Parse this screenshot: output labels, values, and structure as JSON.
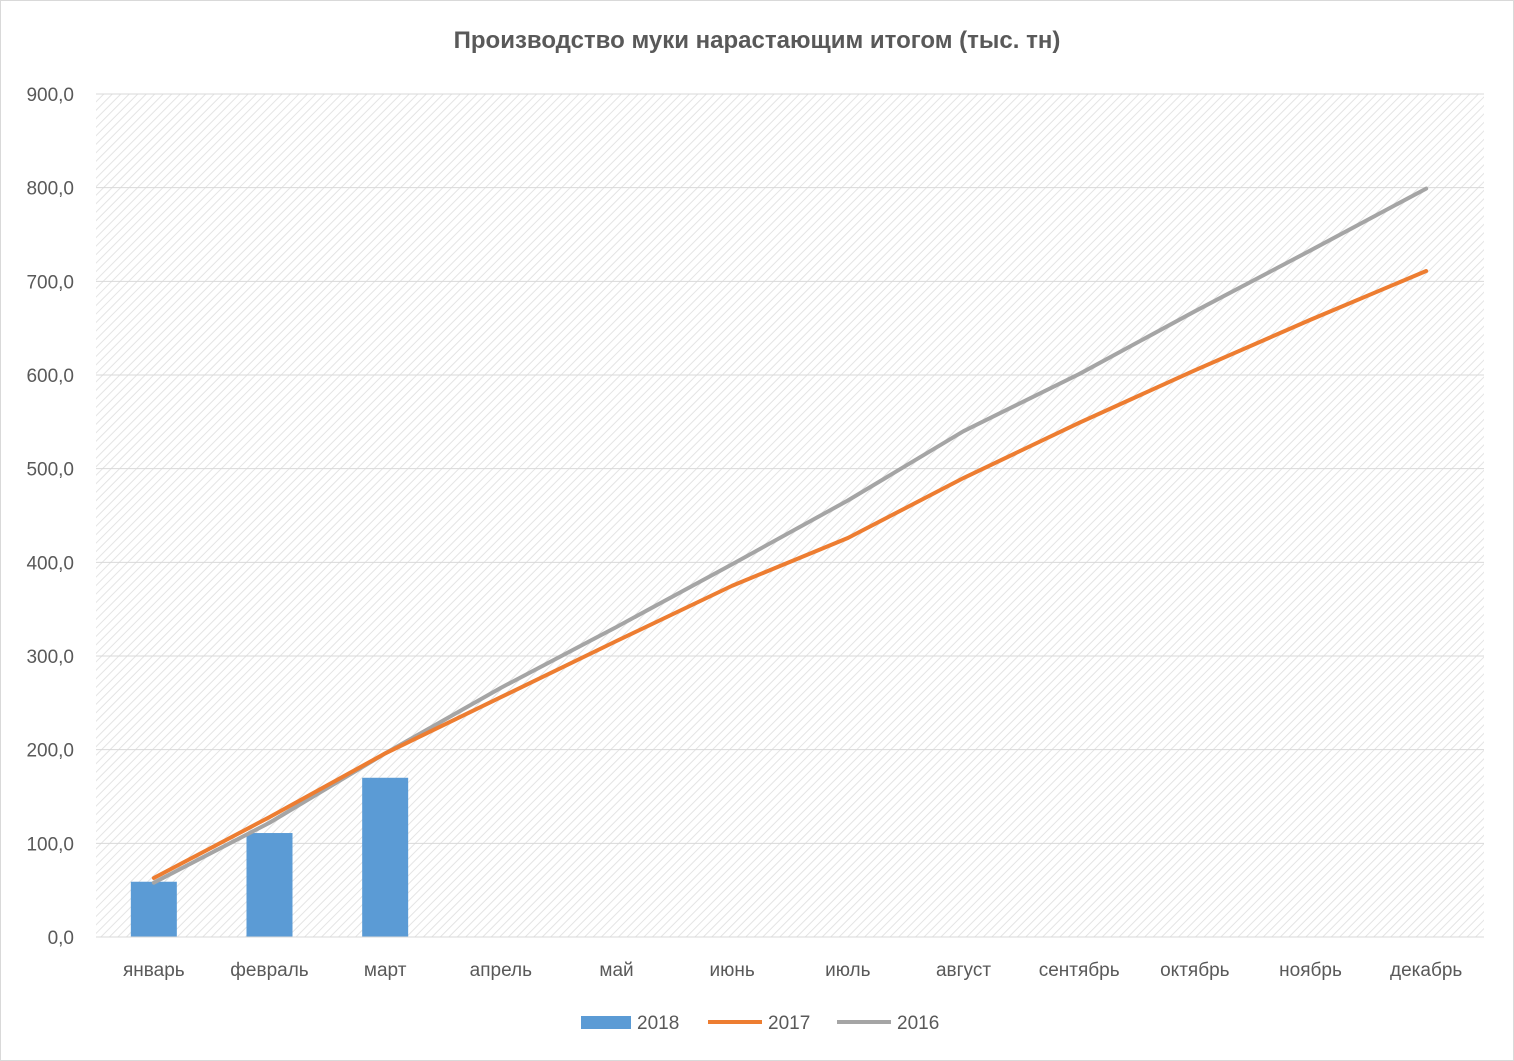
{
  "chart_data": {
    "type": "bar+line",
    "title": "Производство муки нарастающим итогом (тыс. тн)",
    "categories": [
      "январь",
      "февраль",
      "март",
      "апрель",
      "май",
      "июнь",
      "июль",
      "август",
      "сентябрь",
      "октябрь",
      "ноябрь",
      "декабрь"
    ],
    "ylim": [
      0,
      900
    ],
    "yticks": [
      "0,0",
      "100,0",
      "200,0",
      "300,0",
      "400,0",
      "500,0",
      "600,0",
      "700,0",
      "800,0",
      "900,0"
    ],
    "grid": true,
    "legend_position": "bottom",
    "series": [
      {
        "name": "2018",
        "kind": "bar",
        "color": "#5b9bd5",
        "values": [
          59,
          111,
          170,
          null,
          null,
          null,
          null,
          null,
          null,
          null,
          null,
          null
        ]
      },
      {
        "name": "2017",
        "kind": "line",
        "color": "#ed7d31",
        "values": [
          63,
          128,
          196,
          256,
          316,
          375,
          426,
          490,
          549,
          605,
          659,
          711
        ]
      },
      {
        "name": "2016",
        "kind": "line",
        "color": "#a5a5a5",
        "values": [
          58,
          122,
          196,
          266,
          331,
          398,
          466,
          540,
          601,
          668,
          733,
          799
        ]
      }
    ]
  }
}
